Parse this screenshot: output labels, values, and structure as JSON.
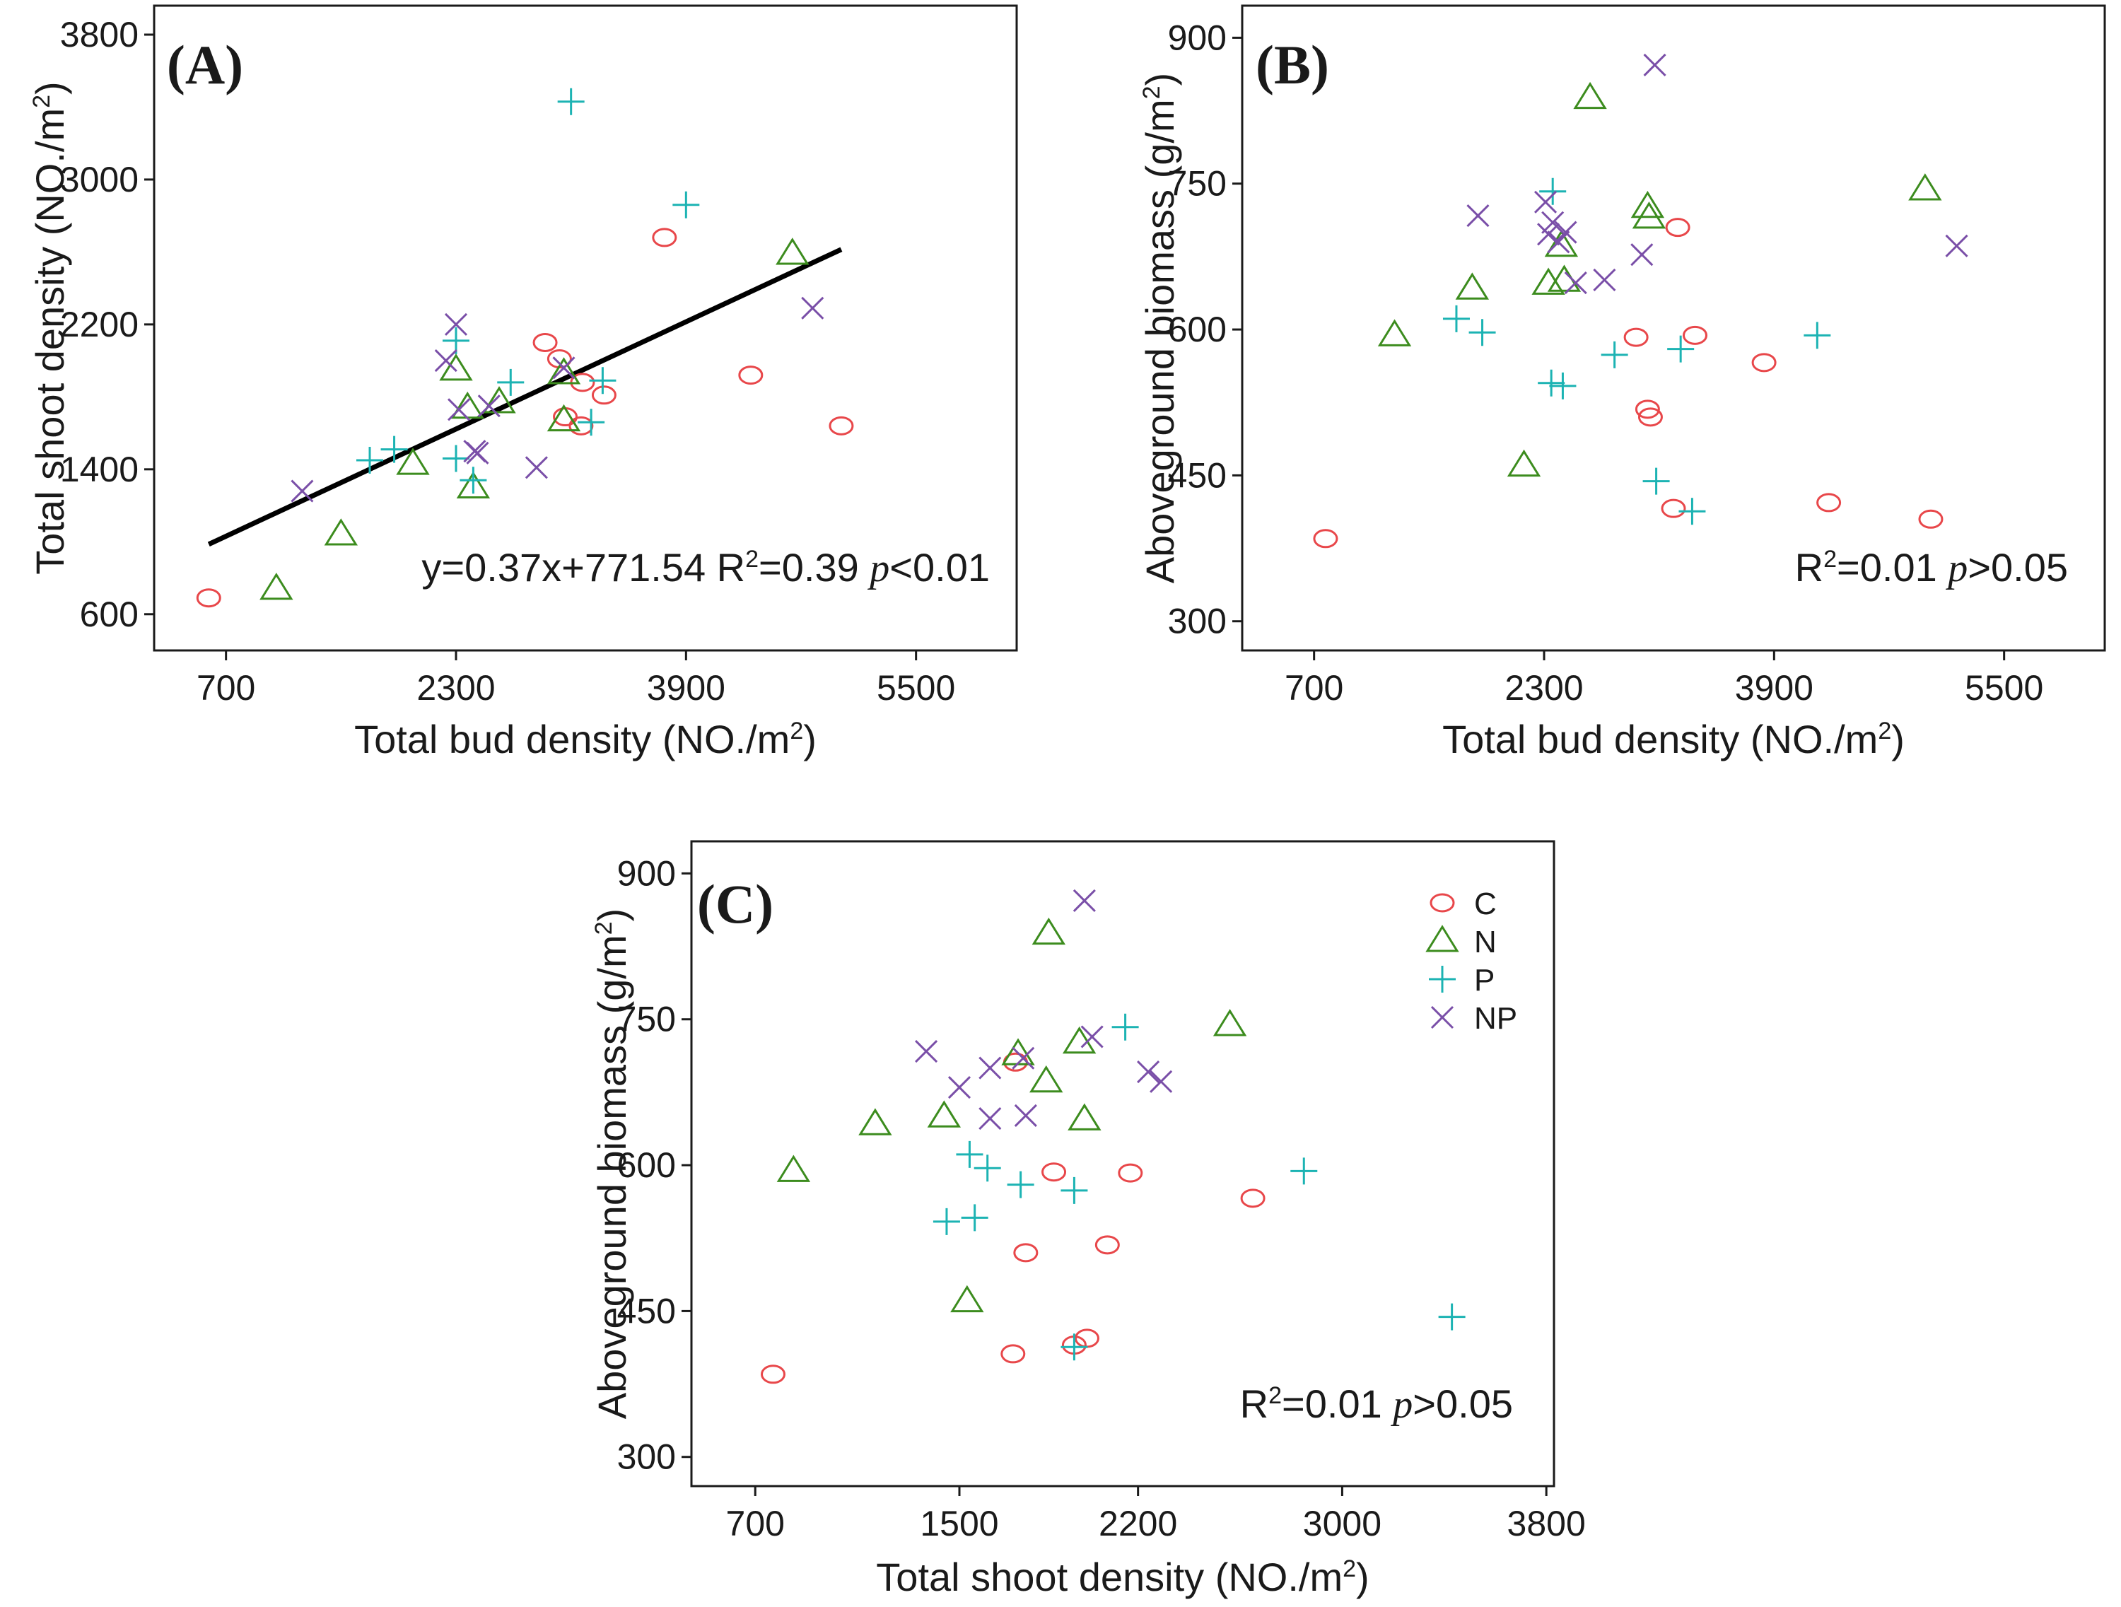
{
  "colors": {
    "C": "#e8474a",
    "N": "#3c8c1e",
    "P": "#1cb3b3",
    "NP": "#7a4fa8"
  },
  "legend": {
    "placement": "top-right of panel C",
    "items": [
      {
        "key": "C",
        "label": "C",
        "marker": "circle-marker"
      },
      {
        "key": "N",
        "label": "N",
        "marker": "triangle-marker"
      },
      {
        "key": "P",
        "label": "P",
        "marker": "plus-marker"
      },
      {
        "key": "NP",
        "label": "NP",
        "marker": "cross-marker"
      }
    ]
  },
  "chart_data": [
    {
      "id": "A",
      "type": "scatter",
      "panel_label": "(A)",
      "xlabel": {
        "main": "Total bud density (NO./m",
        "sup": "2",
        "end": ")"
      },
      "ylabel": {
        "main": "Total shoot density (NO./m",
        "sup": "2",
        "end": ")"
      },
      "xlim": [
        200,
        6200
      ],
      "ylim": [
        400,
        3960
      ],
      "xticks": [
        "700",
        "2300",
        "3900",
        "5500"
      ],
      "xtick_values": [
        700,
        2300,
        3900,
        5500
      ],
      "yticks": [
        "600",
        "1400",
        "2200",
        "3000",
        "3800"
      ],
      "ytick_values": [
        600,
        1400,
        2200,
        3000,
        3800
      ],
      "grid": false,
      "annotation": {
        "eq": "y=0.37x+771.54 R",
        "sup": "2",
        "mid": "=0.39 ",
        "p": "p",
        "end": "<0.01"
      },
      "regression": {
        "slope": 0.37,
        "intercept": 771.54,
        "x_range": [
          580,
          4980
        ]
      },
      "series": [
        {
          "group": "C",
          "points": [
            [
              580,
              690
            ],
            [
              2920,
              2100
            ],
            [
              3020,
              2010
            ],
            [
              3180,
              1880
            ],
            [
              3330,
              1810
            ],
            [
              3170,
              1640
            ],
            [
              3060,
              1690
            ],
            [
              3750,
              2680
            ],
            [
              4350,
              1920
            ],
            [
              4980,
              1640
            ]
          ]
        },
        {
          "group": "N",
          "points": [
            [
              1050,
              740
            ],
            [
              1500,
              1040
            ],
            [
              2000,
              1430
            ],
            [
              2300,
              1950
            ],
            [
              2380,
              1740
            ],
            [
              2420,
              1300
            ],
            [
              2600,
              1770
            ],
            [
              3050,
              1670
            ],
            [
              3050,
              1930
            ],
            [
              4640,
              2590
            ]
          ]
        },
        {
          "group": "P",
          "points": [
            [
              1700,
              1450
            ],
            [
              1870,
              1510
            ],
            [
              2300,
              1460
            ],
            [
              2300,
              2110
            ],
            [
              2420,
              1340
            ],
            [
              2680,
              1880
            ],
            [
              3100,
              3430
            ],
            [
              3240,
              1660
            ],
            [
              3320,
              1890
            ],
            [
              3900,
              2860
            ]
          ]
        },
        {
          "group": "NP",
          "points": [
            [
              1230,
              1280
            ],
            [
              2230,
              2000
            ],
            [
              2300,
              2200
            ],
            [
              2320,
              1730
            ],
            [
              2450,
              1490
            ],
            [
              2530,
              1750
            ],
            [
              2860,
              1410
            ],
            [
              3050,
              1960
            ],
            [
              4780,
              2290
            ],
            [
              2430,
              1500
            ]
          ]
        }
      ]
    },
    {
      "id": "B",
      "type": "scatter",
      "panel_label": "(B)",
      "xlabel": {
        "main": "Total bud density (NO./m",
        "sup": "2",
        "end": ")"
      },
      "ylabel": {
        "main": "Aboveground biomass (g/m",
        "sup": "2",
        "end": ")"
      },
      "xlim": [
        200,
        6200
      ],
      "ylim": [
        270,
        933
      ],
      "xticks": [
        "700",
        "2300",
        "3900",
        "5500"
      ],
      "xtick_values": [
        700,
        2300,
        3900,
        5500
      ],
      "yticks": [
        "300",
        "450",
        "600",
        "750",
        "900"
      ],
      "ytick_values": [
        300,
        450,
        600,
        750,
        900
      ],
      "grid": false,
      "annotation": {
        "eq": "R",
        "sup": "2",
        "mid": "=0.01 ",
        "p": "p",
        "end": ">0.05"
      },
      "series": [
        {
          "group": "C",
          "points": [
            [
              780,
              385
            ],
            [
              2940,
              592
            ],
            [
              3020,
              518
            ],
            [
              3040,
              510
            ],
            [
              3200,
              416
            ],
            [
              3230,
              705
            ],
            [
              3350,
              594
            ],
            [
              3830,
              566
            ],
            [
              4280,
              422
            ],
            [
              4990,
              405
            ]
          ]
        },
        {
          "group": "N",
          "points": [
            [
              1260,
              594
            ],
            [
              1800,
              642
            ],
            [
              2160,
              460
            ],
            [
              2330,
              647
            ],
            [
              2420,
              686
            ],
            [
              2440,
              650
            ],
            [
              2620,
              838
            ],
            [
              3030,
              715
            ],
            [
              3020,
              726
            ],
            [
              4950,
              744
            ]
          ]
        },
        {
          "group": "P",
          "points": [
            [
              1690,
              611
            ],
            [
              1870,
              597
            ],
            [
              2350,
              545
            ],
            [
              2360,
              742
            ],
            [
              2430,
              542
            ],
            [
              2790,
              574
            ],
            [
              3080,
              444
            ],
            [
              3250,
              580
            ],
            [
              3330,
              413
            ],
            [
              4200,
              594
            ]
          ]
        },
        {
          "group": "NP",
          "points": [
            [
              1840,
              717
            ],
            [
              2310,
              731
            ],
            [
              2330,
              698
            ],
            [
              2360,
              710
            ],
            [
              2400,
              690
            ],
            [
              2450,
              700
            ],
            [
              2520,
              648
            ],
            [
              2720,
              651
            ],
            [
              2980,
              677
            ],
            [
              3070,
              872
            ],
            [
              5170,
              686
            ]
          ]
        }
      ]
    },
    {
      "id": "C",
      "type": "scatter",
      "panel_label": "(C)",
      "xlabel": {
        "main": "Total shoot density (NO./m",
        "sup": "2",
        "end": ")"
      },
      "ylabel": {
        "main": "Aboveground biomass (g/m",
        "sup": "2",
        "end": ")"
      },
      "xlim": [
        450,
        3830
      ],
      "ylim": [
        270,
        933
      ],
      "xticks": [
        "700",
        "1500",
        "2200",
        "3000",
        "3800"
      ],
      "xtick_values": [
        700,
        1500,
        2200,
        3000,
        3800
      ],
      "yticks": [
        "300",
        "450",
        "600",
        "750",
        "900"
      ],
      "ytick_values": [
        300,
        450,
        600,
        750,
        900
      ],
      "grid": false,
      "annotation": {
        "eq": "R",
        "sup": "2",
        "mid": "=0.01 ",
        "p": "p",
        "end": ">0.05"
      },
      "series": [
        {
          "group": "C",
          "points": [
            [
              770,
              385
            ],
            [
              1710,
              406
            ],
            [
              1760,
              510
            ],
            [
              1870,
              593
            ],
            [
              1950,
              415
            ],
            [
              2000,
              422
            ],
            [
              2080,
              518
            ],
            [
              2170,
              592
            ],
            [
              2650,
              566
            ],
            [
              1720,
              706
            ]
          ]
        },
        {
          "group": "N",
          "points": [
            [
              850,
              594
            ],
            [
              1170,
              642
            ],
            [
              1440,
              650
            ],
            [
              1530,
              460
            ],
            [
              1730,
              714
            ],
            [
              1840,
              686
            ],
            [
              1970,
              726
            ],
            [
              1990,
              647
            ],
            [
              1850,
              838
            ],
            [
              2560,
              744
            ]
          ]
        },
        {
          "group": "P",
          "points": [
            [
              1450,
              542
            ],
            [
              1560,
              546
            ],
            [
              1540,
              611
            ],
            [
              1610,
              597
            ],
            [
              1740,
              580
            ],
            [
              1950,
              574
            ],
            [
              1950,
              413
            ],
            [
              2150,
              742
            ],
            [
              2850,
              594
            ],
            [
              3430,
              444
            ]
          ]
        },
        {
          "group": "NP",
          "points": [
            [
              1370,
              717
            ],
            [
              1500,
              680
            ],
            [
              1620,
              700
            ],
            [
              1620,
              648
            ],
            [
              1750,
              710
            ],
            [
              1760,
              651
            ],
            [
              2020,
              732
            ],
            [
              1990,
              872
            ],
            [
              2240,
              696
            ],
            [
              2290,
              686
            ]
          ]
        }
      ]
    }
  ]
}
